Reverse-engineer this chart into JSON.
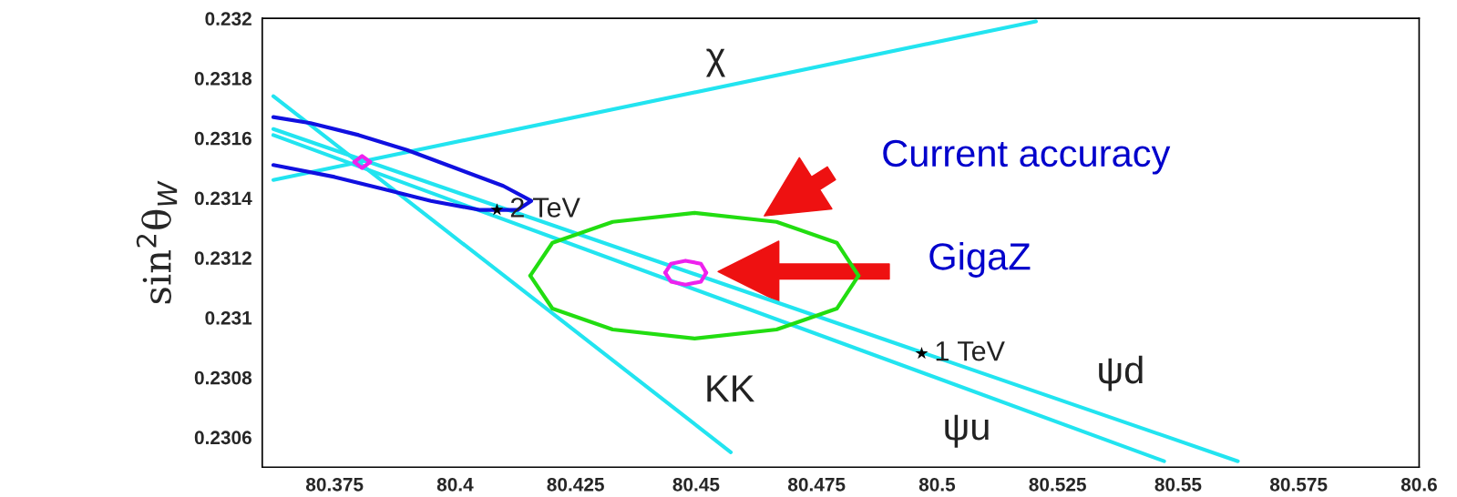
{
  "chart_data": {
    "type": "line",
    "ylabel": "sin$^{2}$θ$_{W}$",
    "xlim": [
      80.36,
      80.6
    ],
    "ylim": [
      0.2305,
      0.232
    ],
    "xticks": [
      80.375,
      80.4,
      80.425,
      80.45,
      80.475,
      80.5,
      80.525,
      80.55,
      80.575,
      80.6
    ],
    "yticks": [
      0.2306,
      0.2308,
      0.231,
      0.2312,
      0.2314,
      0.2316,
      0.2318,
      0.232
    ],
    "grid": false,
    "series": [
      {
        "color": "#22e4f0",
        "x": [
          80.3623,
          80.5205
        ],
        "values": [
          0.23146,
          0.23199
        ]
      },
      {
        "color": "#22e4f0",
        "x": [
          80.3623,
          80.4572
        ],
        "values": [
          0.23174,
          0.23055
        ]
      },
      {
        "color": "#22e4f0",
        "x": [
          80.3623,
          80.5624
        ],
        "values": [
          0.23163,
          0.23052
        ]
      },
      {
        "color": "#22e4f0",
        "x": [
          80.3623,
          80.5471
        ],
        "values": [
          0.23161,
          0.23052
        ]
      },
      {
        "color": "#1010e0",
        "x": [
          80.3623,
          80.37,
          80.38,
          80.39,
          80.4,
          80.41,
          80.4158,
          80.413,
          80.405,
          80.395,
          80.385,
          80.375,
          80.3623
        ],
        "values": [
          0.23167,
          0.23165,
          0.23161,
          0.23156,
          0.2315,
          0.23144,
          0.23139,
          0.23136,
          0.23136,
          0.23139,
          0.23143,
          0.23147,
          0.23151
        ]
      },
      {
        "color": "#22dd11",
        "x": [
          80.4156,
          80.4202,
          80.4327,
          80.4497,
          80.4667,
          80.4792,
          80.4837
        ],
        "values": [
          0.23114,
          0.23125,
          0.23132,
          0.23135,
          0.23132,
          0.23125,
          0.23114
        ]
      },
      {
        "color": "#22dd11",
        "x": [
          80.4156,
          80.4202,
          80.4327,
          80.4497,
          80.4667,
          80.4792,
          80.4837
        ],
        "values": [
          0.23114,
          0.23103,
          0.23096,
          0.23093,
          0.23096,
          0.23103,
          0.23114
        ]
      },
      {
        "color": "#ee22ee",
        "x": [
          80.3791,
          80.3807,
          80.3824
        ],
        "values": [
          0.23152,
          0.23154,
          0.23152
        ]
      },
      {
        "color": "#ee22ee",
        "x": [
          80.3791,
          80.3807,
          80.3824
        ],
        "values": [
          0.23152,
          0.2315,
          0.23152
        ]
      },
      {
        "color": "#ee22ee",
        "x": [
          80.4436,
          80.4448,
          80.4478,
          80.451,
          80.4521
        ],
        "values": [
          0.23115,
          0.23118,
          0.23119,
          0.23118,
          0.23115
        ]
      },
      {
        "color": "#ee22ee",
        "x": [
          80.4436,
          80.4448,
          80.4478,
          80.451,
          80.4521
        ],
        "values": [
          0.23115,
          0.23112,
          0.23111,
          0.23112,
          0.23115
        ]
      },
      {
        "type": "scatter",
        "color": "#000000",
        "marker": "star",
        "x": [
          80.4087,
          80.4968
        ],
        "values": [
          0.23136,
          0.23088
        ]
      }
    ],
    "annotations": [
      "χ",
      "KK",
      "ψd",
      "ψu",
      {
        "text": "2 TeV",
        "x": 80.4087,
        "y": 0.23136
      },
      {
        "text": "1 TeV",
        "x": 80.4968,
        "y": 0.23088
      },
      "Current accuracy",
      "GigaZ"
    ]
  }
}
